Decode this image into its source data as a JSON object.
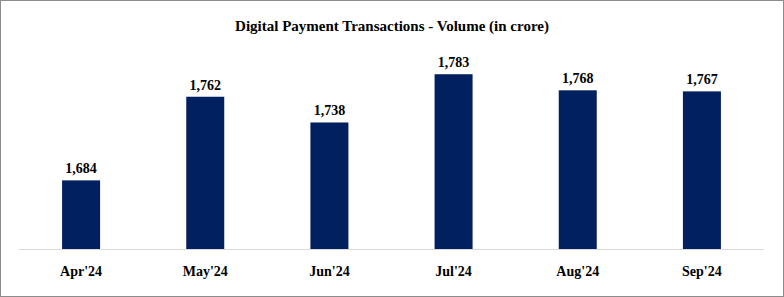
{
  "chart_data": {
    "type": "bar",
    "title": "Digital Payment Transactions - Volume (in crore)",
    "categories": [
      "Apr'24",
      "May'24",
      "Jun'24",
      "Jul'24",
      "Aug'24",
      "Sep'24"
    ],
    "values": [
      1684,
      1762,
      1738,
      1783,
      1768,
      1767
    ],
    "value_labels": [
      "1,684",
      "1,762",
      "1,738",
      "1,783",
      "1,768",
      "1,767"
    ],
    "color": "#002060",
    "ylim": [
      1620,
      1800
    ],
    "data_labels": true,
    "tick_labels": "x",
    "grid": false
  }
}
